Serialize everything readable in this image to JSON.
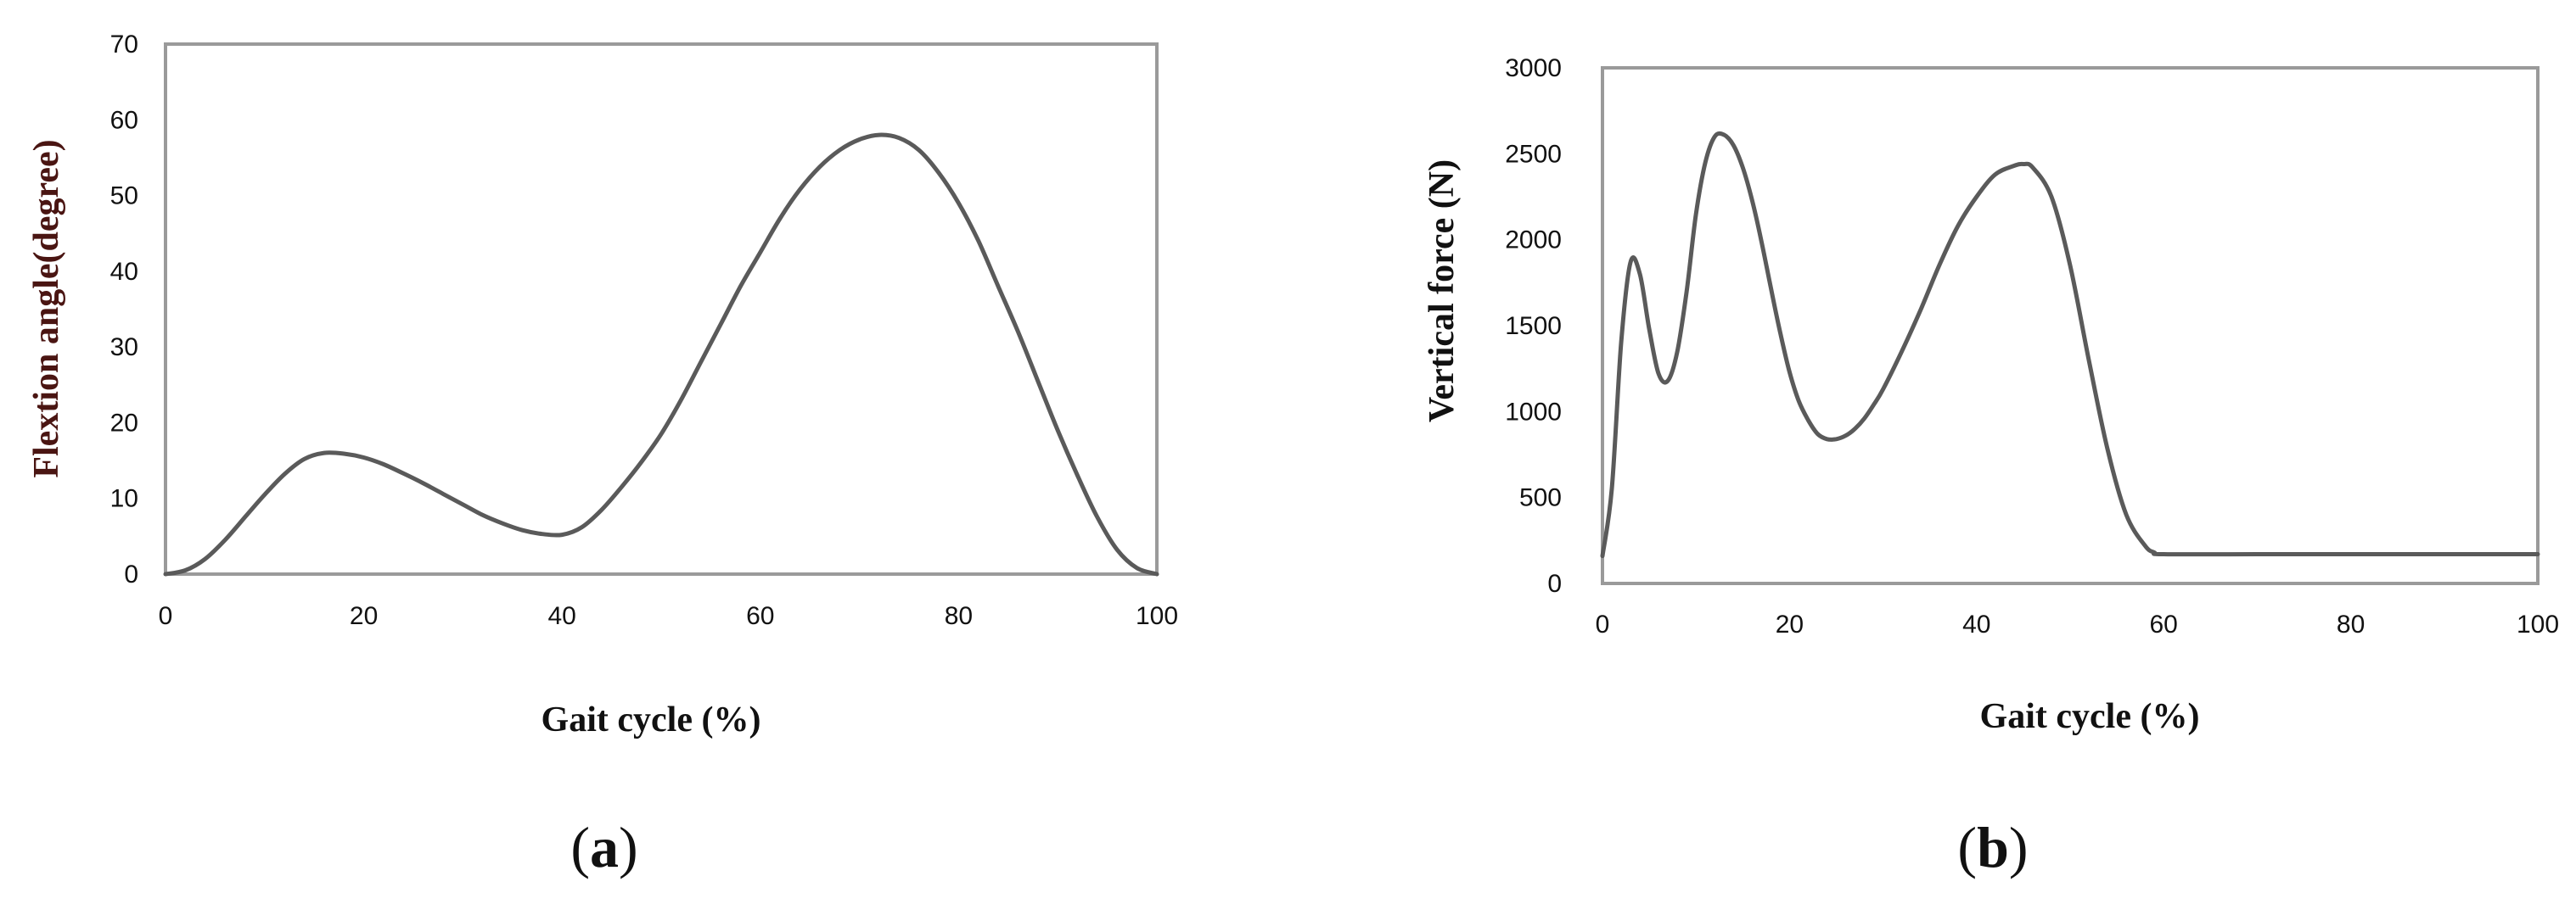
{
  "style": {
    "line_color": "#5a5a5a",
    "frame_color": "#9a9a9a"
  },
  "panels": [
    {
      "open": "(",
      "letter": "a",
      "close": ")"
    },
    {
      "open": "(",
      "letter": "b",
      "close": ")"
    }
  ],
  "chart_data": [
    {
      "type": "line",
      "title": "",
      "xlabel": "Gait cycle (%)",
      "ylabel": "Flextion angle(degree)",
      "xlim": [
        0,
        100
      ],
      "ylim": [
        0,
        70
      ],
      "xticks": [
        0,
        20,
        40,
        60,
        80,
        100
      ],
      "yticks": [
        0,
        10,
        20,
        30,
        40,
        50,
        60,
        70
      ],
      "grid": false,
      "legend": "none",
      "series": [
        {
          "x": [
            0,
            2,
            4,
            6,
            8,
            10,
            12,
            14,
            16,
            18,
            20,
            22,
            24,
            26,
            28,
            30,
            32,
            34,
            36,
            38,
            40,
            42,
            44,
            46,
            48,
            50,
            52,
            54,
            56,
            58,
            60,
            62,
            64,
            66,
            68,
            70,
            72,
            74,
            76,
            78,
            80,
            82,
            84,
            86,
            88,
            90,
            92,
            94,
            96,
            98,
            100
          ],
          "values": [
            0,
            0.5,
            2,
            4.5,
            7.5,
            10.5,
            13.2,
            15.2,
            16,
            15.9,
            15.4,
            14.5,
            13.3,
            12,
            10.6,
            9.2,
            7.8,
            6.7,
            5.8,
            5.3,
            5.2,
            6.2,
            8.5,
            11.5,
            14.8,
            18.5,
            23,
            28,
            33,
            38,
            42.5,
            47,
            50.8,
            53.8,
            56,
            57.4,
            58,
            57.6,
            56,
            53,
            49,
            44,
            38,
            32,
            25.5,
            19,
            13,
            7.5,
            3.2,
            0.8,
            0
          ]
        }
      ]
    },
    {
      "type": "line",
      "title": "",
      "xlabel": "Gait cycle (%)",
      "ylabel": "Vertical force (N)",
      "xlim": [
        0,
        100
      ],
      "ylim": [
        0,
        3000
      ],
      "xticks": [
        0,
        20,
        40,
        60,
        80,
        100
      ],
      "yticks": [
        0,
        500,
        1000,
        1500,
        2000,
        2500,
        3000
      ],
      "grid": false,
      "legend": "none",
      "series": [
        {
          "x": [
            0,
            1,
            2,
            3,
            4,
            5,
            6,
            7,
            8,
            9,
            10,
            11,
            12,
            13,
            14,
            15,
            16,
            17,
            18,
            19,
            20,
            21,
            22,
            23,
            24,
            25,
            26,
            27,
            28,
            29,
            30,
            32,
            34,
            36,
            38,
            40,
            42,
            44,
            45,
            46,
            48,
            50,
            52,
            54,
            56,
            58,
            59,
            60,
            70,
            80,
            90,
            100
          ],
          "values": [
            160,
            550,
            1400,
            1870,
            1800,
            1480,
            1220,
            1180,
            1350,
            1700,
            2150,
            2450,
            2600,
            2610,
            2550,
            2420,
            2230,
            1990,
            1720,
            1460,
            1230,
            1060,
            950,
            870,
            840,
            840,
            860,
            900,
            960,
            1040,
            1130,
            1350,
            1590,
            1850,
            2080,
            2250,
            2380,
            2430,
            2440,
            2420,
            2250,
            1850,
            1300,
            780,
            400,
            220,
            180,
            170,
            170,
            170,
            170,
            170
          ]
        }
      ]
    }
  ]
}
